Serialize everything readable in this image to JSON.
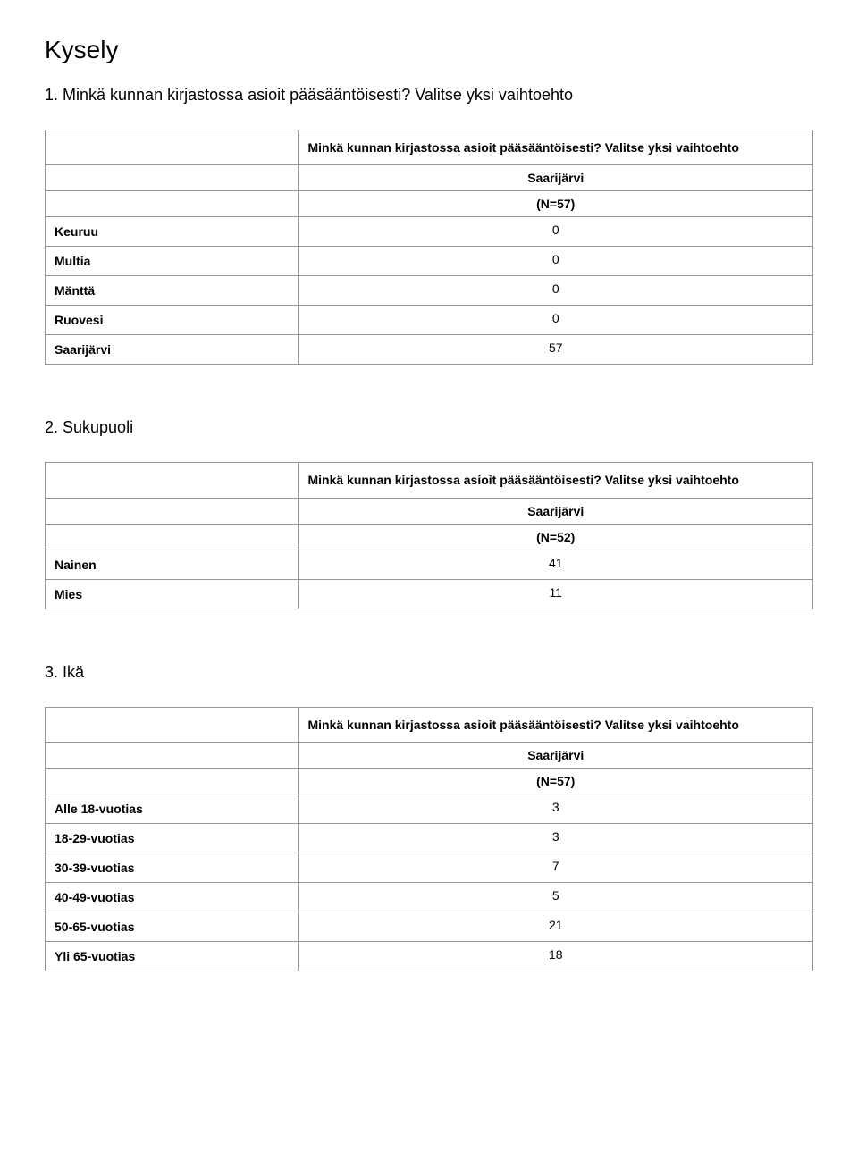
{
  "page_title": "Kysely",
  "questions": [
    {
      "title": "1. Minkä kunnan kirjastossa asioit pääsääntöisesti? Valitse yksi vaihtoehto",
      "header_text": "Minkä kunnan kirjastossa asioit pääsääntöisesti? Valitse yksi vaihtoehto",
      "region_label": "Saarijärvi",
      "n_label": "(N=57)",
      "rows": [
        {
          "label": "Keuruu",
          "value": "0"
        },
        {
          "label": "Multia",
          "value": "0"
        },
        {
          "label": "Mänttä",
          "value": "0"
        },
        {
          "label": "Ruovesi",
          "value": "0"
        },
        {
          "label": "Saarijärvi",
          "value": "57"
        }
      ]
    },
    {
      "title": "2. Sukupuoli",
      "header_text": "Minkä kunnan kirjastossa asioit pääsääntöisesti? Valitse yksi vaihtoehto",
      "region_label": "Saarijärvi",
      "n_label": "(N=52)",
      "rows": [
        {
          "label": "Nainen",
          "value": "41"
        },
        {
          "label": "Mies",
          "value": "11"
        }
      ]
    },
    {
      "title": "3. Ikä",
      "header_text": "Minkä kunnan kirjastossa asioit pääsääntöisesti? Valitse yksi vaihtoehto",
      "region_label": "Saarijärvi",
      "n_label": "(N=57)",
      "rows": [
        {
          "label": "Alle 18-vuotias",
          "value": "3"
        },
        {
          "label": "18-29-vuotias",
          "value": "3"
        },
        {
          "label": "30-39-vuotias",
          "value": "7"
        },
        {
          "label": "40-49-vuotias",
          "value": "5"
        },
        {
          "label": "50-65-vuotias",
          "value": "21"
        },
        {
          "label": "Yli 65-vuotias",
          "value": "18"
        }
      ]
    }
  ]
}
